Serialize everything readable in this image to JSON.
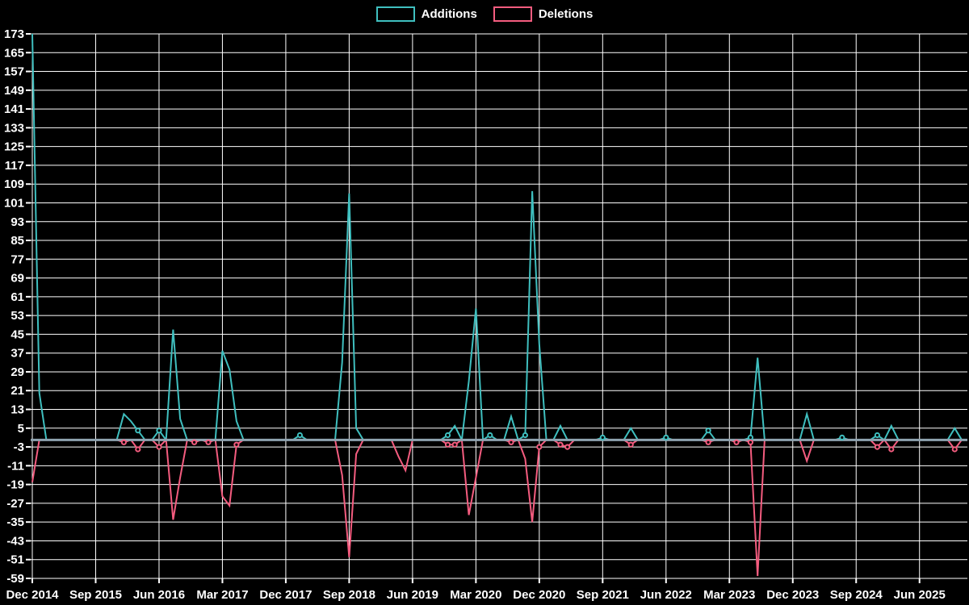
{
  "chart_data": {
    "type": "line",
    "title": "",
    "legend_position": "top-center",
    "background_color": "#000000",
    "grid_color": "#ffffff",
    "zero_line_color": "#8fa3b0",
    "text_color": "#ffffff",
    "x_axis": {
      "tick_labels": [
        "Dec 2014",
        "Sep 2015",
        "Jun 2016",
        "Mar 2017",
        "Dec 2017",
        "Sep 2018",
        "Jun 2019",
        "Mar 2020",
        "Dec 2020",
        "Sep 2021",
        "Jun 2022",
        "Mar 2023",
        "Dec 2023",
        "Sep 2024",
        "Jun 2025"
      ],
      "tick_every_months": 9,
      "months_total": 133,
      "start_month": "Dec 2014",
      "end_month": "Dec 2025"
    },
    "y_axis": {
      "min": -59,
      "max": 173,
      "tick_step": 8,
      "tick_labels": [
        173,
        165,
        157,
        149,
        141,
        133,
        125,
        117,
        109,
        101,
        93,
        85,
        77,
        69,
        61,
        53,
        45,
        37,
        29,
        21,
        13,
        5,
        -3,
        -11,
        -19,
        -27,
        -35,
        -43,
        -51,
        -59
      ]
    },
    "series": [
      {
        "name": "Additions",
        "color": "#3fbfbf",
        "baseline": 0,
        "points": [
          [
            0,
            173
          ],
          [
            1,
            20
          ],
          [
            13,
            11
          ],
          [
            14,
            8
          ],
          [
            15,
            4
          ],
          [
            18,
            4
          ],
          [
            20,
            47
          ],
          [
            21,
            9
          ],
          [
            27,
            38
          ],
          [
            28,
            30
          ],
          [
            29,
            8
          ],
          [
            38,
            2
          ],
          [
            44,
            33
          ],
          [
            45,
            105
          ],
          [
            46,
            5
          ],
          [
            59,
            2
          ],
          [
            60,
            6
          ],
          [
            62,
            25
          ],
          [
            63,
            56
          ],
          [
            65,
            2
          ],
          [
            68,
            10
          ],
          [
            70,
            2
          ],
          [
            71,
            106
          ],
          [
            72,
            41
          ],
          [
            75,
            6
          ],
          [
            81,
            1
          ],
          [
            85,
            5
          ],
          [
            90,
            1
          ],
          [
            96,
            4
          ],
          [
            102,
            1
          ],
          [
            103,
            35
          ],
          [
            110,
            11
          ],
          [
            115,
            1
          ],
          [
            120,
            2
          ],
          [
            122,
            6
          ],
          [
            131,
            5
          ]
        ]
      },
      {
        "name": "Deletions",
        "color": "#f45c7f",
        "baseline": 0,
        "points": [
          [
            0,
            -18
          ],
          [
            13,
            -1
          ],
          [
            15,
            -4
          ],
          [
            18,
            -3
          ],
          [
            20,
            -34
          ],
          [
            21,
            -16
          ],
          [
            23,
            -1
          ],
          [
            25,
            -1
          ],
          [
            27,
            -24
          ],
          [
            28,
            -28
          ],
          [
            29,
            -2
          ],
          [
            44,
            -15
          ],
          [
            45,
            -50
          ],
          [
            46,
            -6
          ],
          [
            52,
            -7
          ],
          [
            53,
            -13
          ],
          [
            59,
            -2
          ],
          [
            60,
            -2
          ],
          [
            62,
            -32
          ],
          [
            63,
            -16
          ],
          [
            68,
            -1
          ],
          [
            70,
            -8
          ],
          [
            71,
            -35
          ],
          [
            72,
            -3
          ],
          [
            75,
            -2
          ],
          [
            76,
            -3
          ],
          [
            85,
            -2
          ],
          [
            96,
            -1
          ],
          [
            100,
            -1
          ],
          [
            102,
            -1
          ],
          [
            103,
            -58
          ],
          [
            110,
            -9
          ],
          [
            120,
            -3
          ],
          [
            122,
            -4
          ],
          [
            131,
            -4
          ]
        ]
      }
    ],
    "points_encoding": "points are [month_index_from_start, value]; all unlisted months equal the baseline 0"
  }
}
